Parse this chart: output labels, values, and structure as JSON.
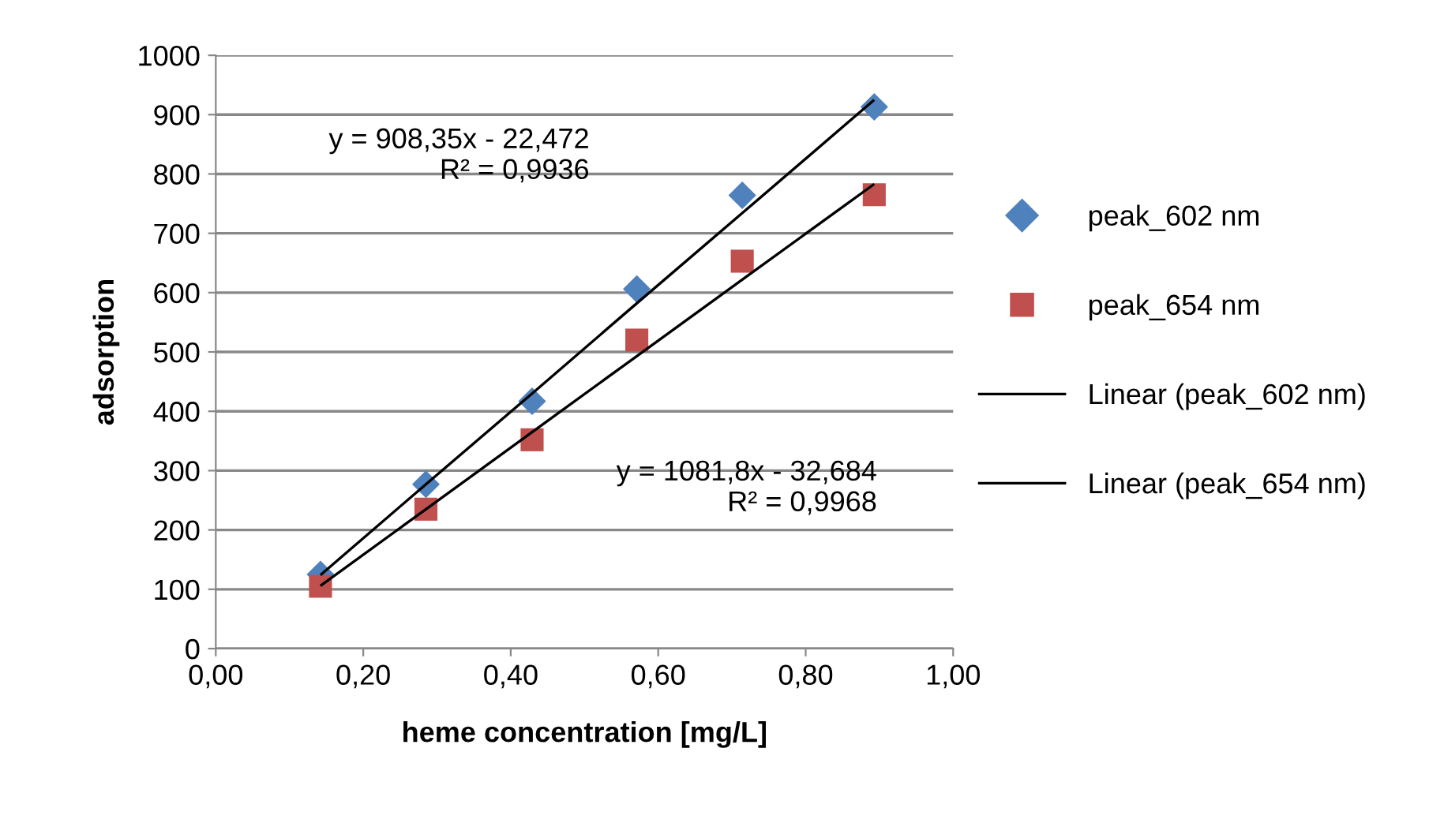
{
  "chart_data": {
    "type": "scatter",
    "xlabel": "heme concentration [mg/L]",
    "ylabel": "adsorption",
    "x": [
      0.142,
      0.285,
      0.429,
      0.571,
      0.714,
      0.893
    ],
    "series": [
      {
        "name": "peak_602 nm",
        "color": "#4f81bd",
        "marker": "diamond",
        "values": [
          125,
          277,
          417,
          606,
          764,
          913
        ]
      },
      {
        "name": "peak_654 nm",
        "color": "#c0504d",
        "marker": "square",
        "values": [
          105,
          235,
          352,
          520,
          653,
          765
        ]
      },
      {
        "name": "Linear (peak_602 nm)",
        "type": "line",
        "color": "#000000",
        "marker": "none",
        "values": [
          124,
          277,
          430,
          582,
          734,
          925
        ]
      },
      {
        "name": "Linear (peak_654 nm)",
        "type": "line",
        "color": "#000000",
        "marker": "none",
        "values": [
          106,
          235,
          365,
          493,
          622,
          783
        ]
      }
    ],
    "annotations": [
      "y = 908,35x - 22,472\nR² = 0,9936",
      "y = 1081,8x - 32,684\nR² = 0,9968"
    ],
    "xlim": [
      0,
      1
    ],
    "xticks": [
      {
        "value": 0,
        "label": "0,00"
      },
      {
        "value": 0.2,
        "label": "0,20"
      },
      {
        "value": 0.4,
        "label": "0,40"
      },
      {
        "value": 0.6,
        "label": "0,60"
      },
      {
        "value": 0.8,
        "label": "0,80"
      },
      {
        "value": 1,
        "label": "1,00"
      }
    ],
    "ylim": [
      0,
      1000
    ],
    "yticks": [
      0,
      100,
      200,
      300,
      400,
      500,
      600,
      700,
      800,
      900,
      1000
    ],
    "grid": "y",
    "legend": "right"
  }
}
